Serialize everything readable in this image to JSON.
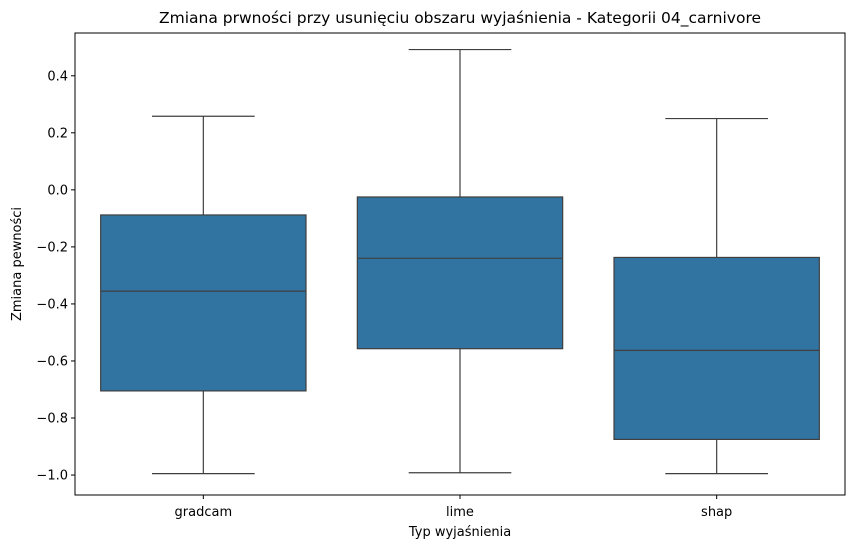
{
  "chart_data": {
    "type": "box",
    "title": "Zmiana prwności przy usunięciu obszaru wyjaśnienia - Kategorii 04_carnivore",
    "xlabel": "Typ wyjaśnienia",
    "ylabel": "Zmiana pewności",
    "ylim": [
      -1.07,
      0.55
    ],
    "yticks": [
      -1.0,
      -0.8,
      -0.6,
      -0.4,
      -0.2,
      0.0,
      0.2,
      0.4
    ],
    "ytick_labels": [
      "−1.0",
      "−0.8",
      "−0.6",
      "−0.4",
      "−0.2",
      "0.0",
      "0.2",
      "0.4"
    ],
    "categories": [
      "gradcam",
      "lime",
      "shap"
    ],
    "boxes": [
      {
        "category": "gradcam",
        "whisker_low": -0.995,
        "q1": -0.705,
        "median": -0.355,
        "q3": -0.088,
        "whisker_high": 0.258
      },
      {
        "category": "lime",
        "whisker_low": -0.992,
        "q1": -0.557,
        "median": -0.24,
        "q3": -0.025,
        "whisker_high": 0.492
      },
      {
        "category": "shap",
        "whisker_low": -0.995,
        "q1": -0.875,
        "median": -0.563,
        "q3": -0.237,
        "whisker_high": 0.25
      }
    ],
    "color": "#3274a1",
    "line_color": "#3f3f3f",
    "grid": false,
    "legend": "none"
  }
}
